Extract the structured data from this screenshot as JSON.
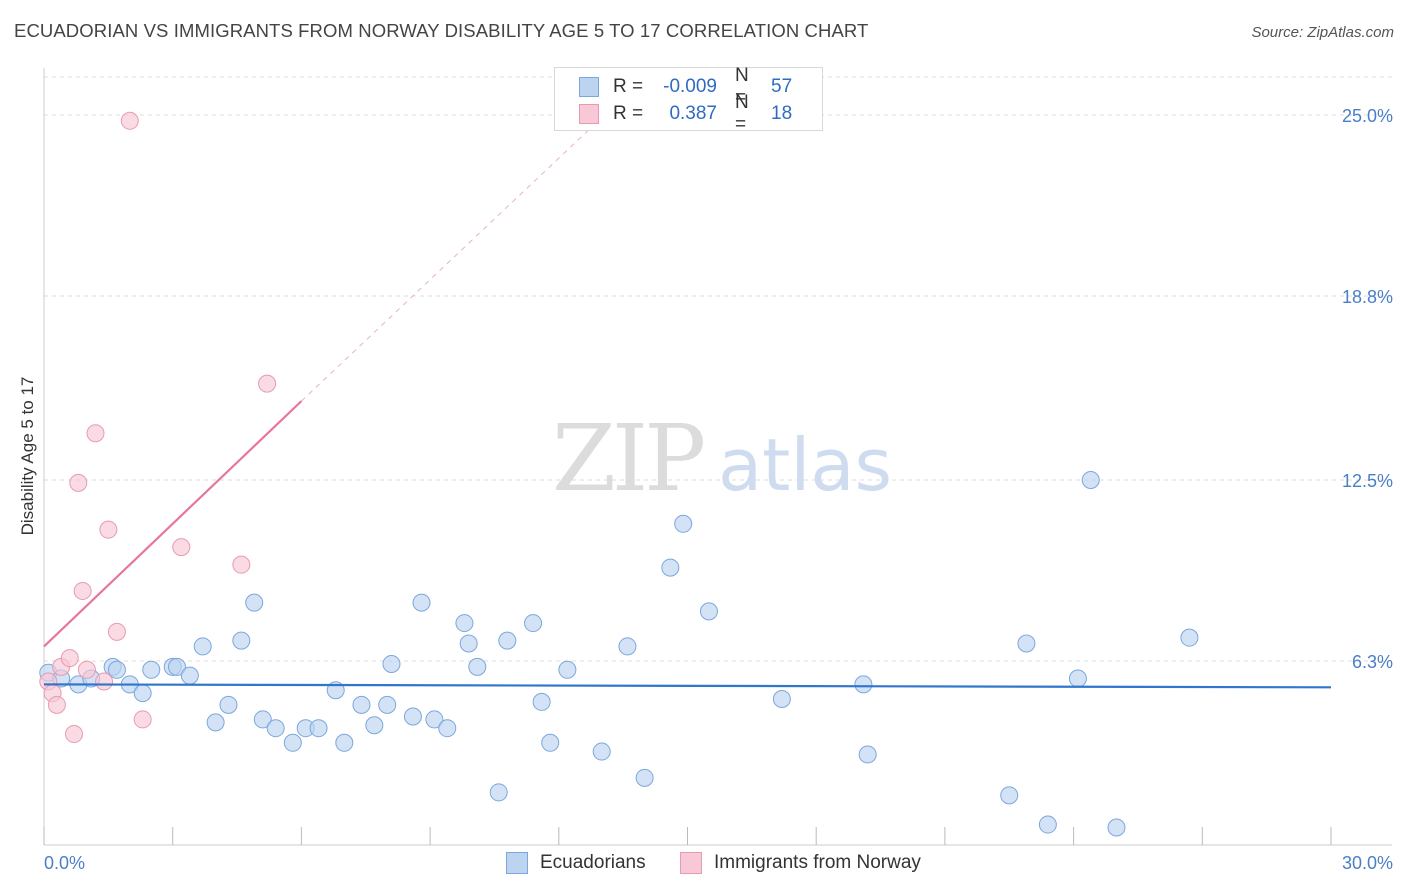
{
  "title": "ECUADORIAN VS IMMIGRANTS FROM NORWAY DISABILITY AGE 5 TO 17 CORRELATION CHART",
  "source": "Source: ZipAtlas.com",
  "watermark": {
    "zip": "ZIP",
    "atlas": "atlas"
  },
  "colors": {
    "blue_fill": "#bcd4f0",
    "blue_stroke": "#7ba7dd",
    "blue_line": "#2f76cc",
    "pink_fill": "#f8c8d6",
    "pink_stroke": "#e89ab2",
    "pink_line": "#e8769a",
    "grid": "#dddddd",
    "tick_text": "#4a7fc8"
  },
  "legend": {
    "rows": [
      {
        "r_label": "R =",
        "r_value": "-0.009",
        "n_label": "N =",
        "n_value": "57",
        "color": "blue"
      },
      {
        "r_label": "R =",
        "r_value": "0.387",
        "n_label": "N =",
        "n_value": "18",
        "color": "pink"
      }
    ]
  },
  "bottom_legend": [
    {
      "label": "Ecuadorians",
      "color": "blue"
    },
    {
      "label": "Immigrants from Norway",
      "color": "pink"
    }
  ],
  "chart_data": {
    "type": "scatter",
    "title": "ECUADORIAN VS IMMIGRANTS FROM NORWAY DISABILITY AGE 5 TO 17 CORRELATION CHART",
    "xlabel": "",
    "ylabel": "Disability Age 5 to 17",
    "xlim": [
      0,
      30
    ],
    "ylim": [
      0,
      26.3
    ],
    "x_tick_labels": [
      "0.0%",
      "30.0%"
    ],
    "y_ticks": [
      6.3,
      12.5,
      18.8,
      25.0
    ],
    "y_tick_labels": [
      "6.3%",
      "12.5%",
      "18.8%",
      "25.0%"
    ],
    "grid": true,
    "series": [
      {
        "name": "Ecuadorians",
        "color": "blue",
        "r": -0.009,
        "n": 57,
        "trend": {
          "x0": 0,
          "y0": 5.5,
          "x1": 30,
          "y1": 5.4
        },
        "points": [
          [
            0.1,
            5.9
          ],
          [
            0.4,
            5.7
          ],
          [
            0.8,
            5.5
          ],
          [
            1.1,
            5.7
          ],
          [
            1.6,
            6.1
          ],
          [
            1.7,
            6.0
          ],
          [
            2.0,
            5.5
          ],
          [
            2.3,
            5.2
          ],
          [
            2.5,
            6.0
          ],
          [
            3.0,
            6.1
          ],
          [
            3.1,
            6.1
          ],
          [
            3.4,
            5.8
          ],
          [
            3.7,
            6.8
          ],
          [
            4.0,
            4.2
          ],
          [
            4.3,
            4.8
          ],
          [
            4.6,
            7.0
          ],
          [
            4.9,
            8.3
          ],
          [
            5.1,
            4.3
          ],
          [
            5.4,
            4.0
          ],
          [
            5.8,
            3.5
          ],
          [
            6.1,
            4.0
          ],
          [
            6.4,
            4.0
          ],
          [
            6.8,
            5.3
          ],
          [
            7.0,
            3.5
          ],
          [
            7.4,
            4.8
          ],
          [
            7.7,
            4.1
          ],
          [
            8.0,
            4.8
          ],
          [
            8.1,
            6.2
          ],
          [
            8.6,
            4.4
          ],
          [
            8.8,
            8.3
          ],
          [
            9.1,
            4.3
          ],
          [
            9.4,
            4.0
          ],
          [
            9.8,
            7.6
          ],
          [
            9.9,
            6.9
          ],
          [
            10.1,
            6.1
          ],
          [
            10.6,
            1.8
          ],
          [
            10.8,
            7.0
          ],
          [
            11.4,
            7.6
          ],
          [
            11.6,
            4.9
          ],
          [
            11.8,
            3.5
          ],
          [
            12.2,
            6.0
          ],
          [
            13.0,
            3.2
          ],
          [
            13.6,
            6.8
          ],
          [
            14.0,
            2.3
          ],
          [
            14.6,
            9.5
          ],
          [
            14.9,
            11.0
          ],
          [
            15.5,
            8.0
          ],
          [
            17.2,
            5.0
          ],
          [
            19.1,
            5.5
          ],
          [
            19.2,
            3.1
          ],
          [
            22.5,
            1.7
          ],
          [
            22.9,
            6.9
          ],
          [
            23.4,
            0.7
          ],
          [
            24.1,
            5.7
          ],
          [
            24.4,
            12.5
          ],
          [
            25.0,
            0.6
          ],
          [
            26.7,
            7.1
          ]
        ]
      },
      {
        "name": "Immigrants from Norway",
        "color": "pink",
        "r": 0.387,
        "n": 18,
        "trend": {
          "x0": 0,
          "y0": 6.8,
          "x1": 6.0,
          "y1": 15.2
        },
        "trend_extension": {
          "x0": 6.0,
          "y0": 15.2,
          "x1": 13.5,
          "y1": 25.6
        },
        "points": [
          [
            0.1,
            5.6
          ],
          [
            0.2,
            5.2
          ],
          [
            0.3,
            4.8
          ],
          [
            0.4,
            6.1
          ],
          [
            0.6,
            6.4
          ],
          [
            0.7,
            3.8
          ],
          [
            0.8,
            12.4
          ],
          [
            0.9,
            8.7
          ],
          [
            1.0,
            6.0
          ],
          [
            1.2,
            14.1
          ],
          [
            1.4,
            5.6
          ],
          [
            1.5,
            10.8
          ],
          [
            1.7,
            7.3
          ],
          [
            2.0,
            24.8
          ],
          [
            2.3,
            4.3
          ],
          [
            3.2,
            10.2
          ],
          [
            4.6,
            9.6
          ],
          [
            5.2,
            15.8
          ]
        ]
      }
    ]
  }
}
